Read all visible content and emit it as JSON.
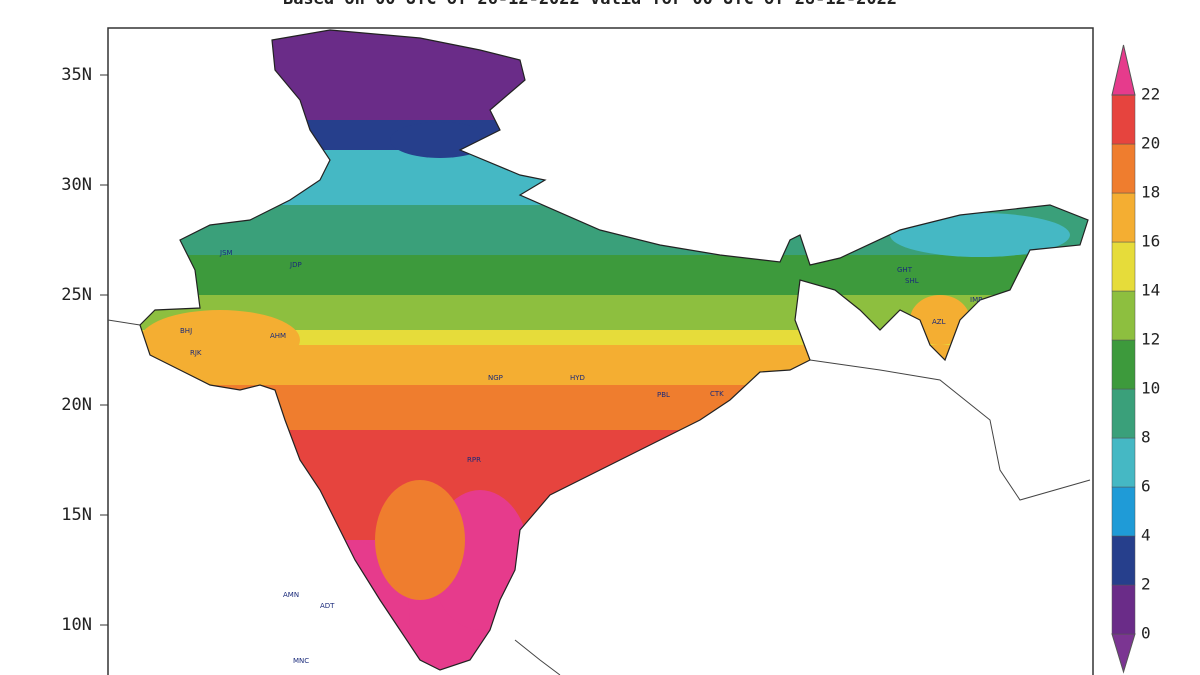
{
  "title": "Based on 00 UTC of 26-12-2022 valid for 00 UTC of 28-12-2022",
  "latitude_labels": [
    {
      "value": 35,
      "label": "35N"
    },
    {
      "value": 30,
      "label": "30N"
    },
    {
      "value": 25,
      "label": "25N"
    },
    {
      "value": 20,
      "label": "20N"
    },
    {
      "value": 15,
      "label": "15N"
    },
    {
      "value": 10,
      "label": "10N"
    }
  ],
  "colorbar": {
    "levels": [
      0,
      2,
      4,
      6,
      8,
      10,
      12,
      14,
      16,
      18,
      20,
      22
    ],
    "colors": [
      "#7b3592",
      "#6a2c88",
      "#263f8c",
      "#1f9bd7",
      "#45b8c4",
      "#3aa07a",
      "#3d9a3c",
      "#8dbf3f",
      "#e6dc3a",
      "#f4ae32",
      "#ef7d2e",
      "#e6443e",
      "#e63b8c"
    ]
  },
  "stations": [
    "BHJ",
    "RJK",
    "AHM",
    "JSM",
    "JDP",
    "NGP",
    "RPR",
    "HYD",
    "CTK",
    "PBL",
    "GHT",
    "SHL",
    "IMP",
    "AZL",
    "AMN",
    "ADT",
    "MNC"
  ]
}
